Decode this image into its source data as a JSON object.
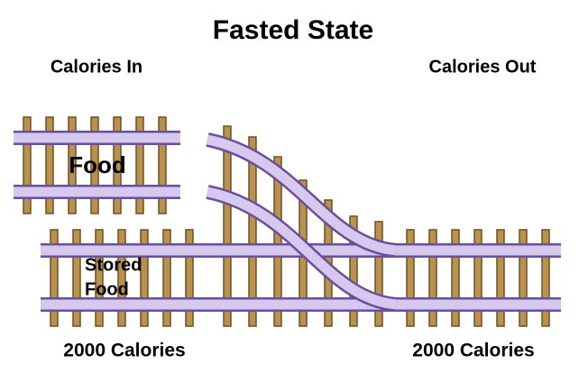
{
  "title": "Fasted State",
  "left": {
    "heading": "Calories In",
    "top_track_label": "Food",
    "bottom_track_label": [
      "Stored",
      "Food"
    ],
    "footer": "2000 Calories"
  },
  "right": {
    "heading": "Calories Out",
    "footer": "2000 Calories"
  }
}
